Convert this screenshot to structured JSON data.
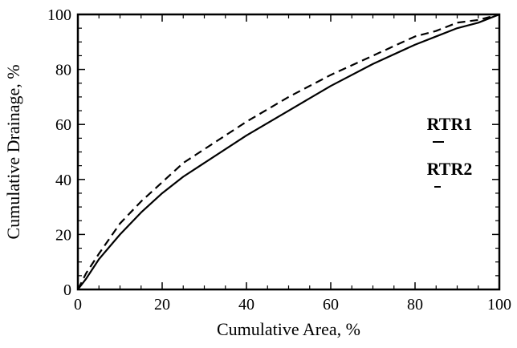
{
  "chart_data": {
    "type": "line",
    "title": "",
    "xlabel": "Cumulative Area, %",
    "ylabel": "Cumulative Drainage, %",
    "xlim": [
      0,
      100
    ],
    "ylim": [
      0,
      100
    ],
    "x_ticks": [
      "0",
      "20",
      "40",
      "60",
      "80",
      "100"
    ],
    "y_ticks": [
      "0",
      "20",
      "40",
      "60",
      "80",
      "100"
    ],
    "grid": false,
    "legend_position": "right",
    "series": [
      {
        "name": "RTR1",
        "style": "solid",
        "color": "#000000",
        "x": [
          0,
          2,
          5,
          10,
          15,
          20,
          25,
          30,
          40,
          50,
          60,
          70,
          80,
          85,
          90,
          95,
          100
        ],
        "y": [
          0,
          4,
          11,
          20,
          28,
          35,
          41,
          46,
          56,
          65,
          74,
          82,
          89,
          92,
          95,
          97,
          100
        ]
      },
      {
        "name": "RTR2",
        "style": "dashed",
        "color": "#000000",
        "x": [
          0,
          2,
          5,
          10,
          15,
          20,
          25,
          30,
          40,
          50,
          60,
          70,
          80,
          85,
          90,
          95,
          100
        ],
        "y": [
          0,
          6,
          13,
          24,
          32,
          39,
          46,
          51,
          61,
          70,
          78,
          85,
          92,
          94,
          97,
          98,
          100
        ]
      }
    ]
  }
}
